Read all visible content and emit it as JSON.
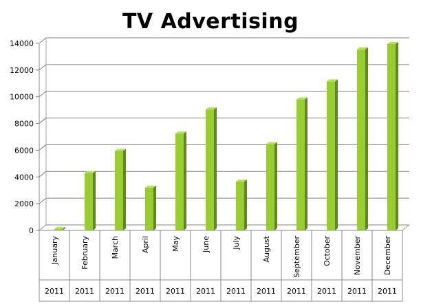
{
  "chart_data": {
    "type": "bar",
    "title": "TV Advertising",
    "categories": [
      "January",
      "February",
      "March",
      "April",
      "May",
      "June",
      "July",
      "August",
      "September",
      "October",
      "November",
      "December"
    ],
    "category_group_labels": [
      "2011",
      "2011",
      "2011",
      "2011",
      "2011",
      "2011",
      "2011",
      "2011",
      "2011",
      "2011",
      "2011",
      "2011"
    ],
    "values": [
      100,
      4300,
      5950,
      3200,
      7250,
      9050,
      3650,
      6450,
      9800,
      11150,
      13550,
      13950
    ],
    "y_ticks": [
      "0",
      "2000",
      "4000",
      "6000",
      "8000",
      "10000",
      "12000",
      "14000"
    ],
    "ylim": [
      0,
      14000
    ],
    "xlabel": "",
    "ylabel": "",
    "grid": true,
    "legend": "none",
    "colors": {
      "bar_front": "#99cc33",
      "bar_side": "#5e8a1a",
      "bar_top": "#b8e060",
      "gridline": "#7f7f7f",
      "wall_edge": "#a0a0a0"
    }
  }
}
